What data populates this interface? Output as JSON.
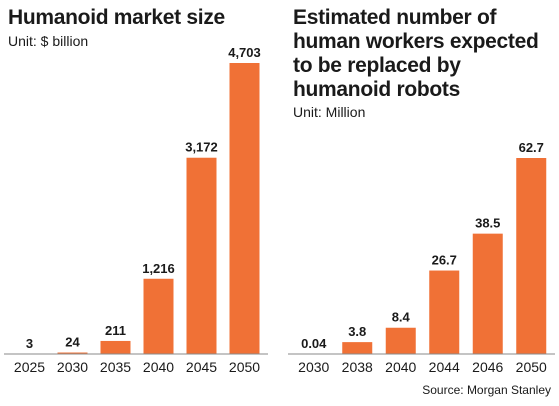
{
  "chart_data": [
    {
      "type": "bar",
      "title": "Humanoid market size",
      "subtitle": "Unit: $ billion",
      "categories": [
        "2025",
        "2030",
        "2035",
        "2040",
        "2045",
        "2050"
      ],
      "values": [
        3,
        24,
        211,
        1216,
        3172,
        4703
      ],
      "value_labels": [
        "3",
        "24",
        "211",
        "1,216",
        "3,172",
        "4,703"
      ],
      "color": "#f07136"
    },
    {
      "type": "bar",
      "title": "Estimated number of\nhuman workers expected\nto be replaced by\nhumanoid robots",
      "subtitle": "Unit: Million",
      "categories": [
        "2030",
        "2038",
        "2040",
        "2044",
        "2046",
        "2050"
      ],
      "values": [
        0.04,
        3.8,
        8.4,
        26.7,
        38.5,
        62.7
      ],
      "value_labels": [
        "0.04",
        "3.8",
        "8.4",
        "26.7",
        "38.5",
        "62.7"
      ],
      "color": "#f07136"
    }
  ],
  "source": "Source: Morgan Stanley"
}
